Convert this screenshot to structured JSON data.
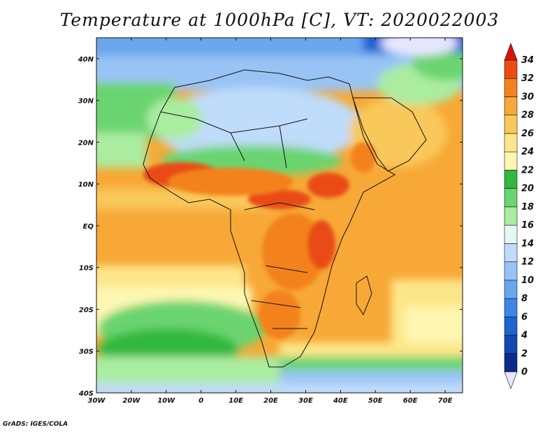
{
  "title": "Temperature at 1000hPa [C], VT: 2020022003",
  "credit": "GrADS: IGES/COLA",
  "map": {
    "lon_range": [
      -30,
      75
    ],
    "lat_range": [
      -40,
      45
    ],
    "lat_ticks": [
      {
        "value": 40,
        "label": "40N"
      },
      {
        "value": 30,
        "label": "30N"
      },
      {
        "value": 20,
        "label": "20N"
      },
      {
        "value": 10,
        "label": "10N"
      },
      {
        "value": 0,
        "label": "EQ"
      },
      {
        "value": -10,
        "label": "10S"
      },
      {
        "value": -20,
        "label": "20S"
      },
      {
        "value": -30,
        "label": "30S"
      },
      {
        "value": -40,
        "label": "40S"
      }
    ],
    "lon_ticks": [
      {
        "value": -30,
        "label": "30W"
      },
      {
        "value": -20,
        "label": "20W"
      },
      {
        "value": -10,
        "label": "10W"
      },
      {
        "value": 0,
        "label": "0"
      },
      {
        "value": 10,
        "label": "10E"
      },
      {
        "value": 20,
        "label": "20E"
      },
      {
        "value": 30,
        "label": "30E"
      },
      {
        "value": 40,
        "label": "40E"
      },
      {
        "value": 50,
        "label": "50E"
      },
      {
        "value": 60,
        "label": "60E"
      },
      {
        "value": 70,
        "label": "70E"
      }
    ]
  },
  "colorbar": {
    "labels": [
      "0",
      "2",
      "4",
      "6",
      "8",
      "10",
      "12",
      "14",
      "16",
      "18",
      "20",
      "22",
      "24",
      "26",
      "28",
      "30",
      "32",
      "34"
    ],
    "under_color": "#e6e6ff",
    "over_color": "#d8100c",
    "colors": [
      "#0b2a8c",
      "#1447b0",
      "#1e64d0",
      "#3c86e6",
      "#6aa6ee",
      "#98c4f5",
      "#bfdcfa",
      "#e6f6f2",
      "#aaeca0",
      "#6ad470",
      "#32b83c",
      "#fdf7b2",
      "#fde68a",
      "#f9c85a",
      "#f7a836",
      "#f3821e",
      "#ea4c12"
    ]
  }
}
